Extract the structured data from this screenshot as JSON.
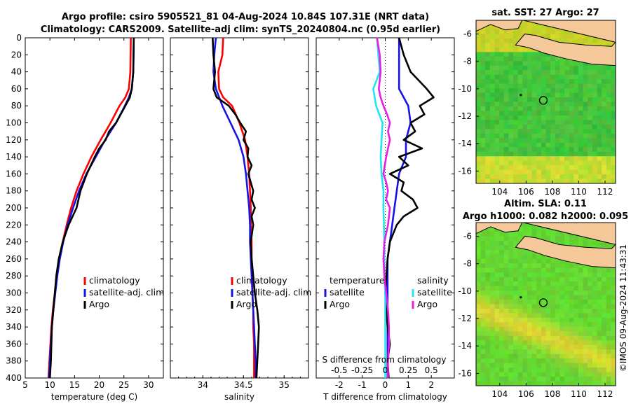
{
  "title_line1": "Argo profile: csiro 5905521_81 04-Aug-2024 10.84S 107.31E (NRT data)",
  "title_line2": "Climatology: CARS2009. Satellite-adj clim: synTS_20240804.nc (0.95d earlier)",
  "credit": "©IMOS 09-Aug-2024 11:43:31",
  "colors": {
    "climatology": "#ff0000",
    "satellite": "#1414e6",
    "argo": "#000000",
    "sat_salinity": "#22e5f0",
    "argo_salinity": "#e61ee6",
    "land": "#f5c89a",
    "sea": "#38c938"
  },
  "chart_data": [
    {
      "type": "line",
      "xlabel": "temperature (deg C)",
      "ylabel": "",
      "xlim": [
        5,
        33
      ],
      "ylim": [
        400,
        0
      ],
      "xticks": [
        "5",
        "10",
        "15",
        "20",
        "25",
        "30"
      ],
      "yticks": [
        "0",
        "20",
        "40",
        "60",
        "80",
        "100",
        "120",
        "140",
        "160",
        "180",
        "200",
        "220",
        "240",
        "260",
        "280",
        "300",
        "320",
        "340",
        "360",
        "380",
        "400"
      ],
      "legend": [
        "climatology",
        "satellite-adj. clim",
        "Argo"
      ],
      "series": [
        {
          "name": "climatology",
          "depth": [
            0,
            40,
            60,
            70,
            80,
            100,
            120,
            140,
            160,
            180,
            200,
            220,
            240,
            260,
            280,
            300,
            320,
            340,
            360,
            380,
            400
          ],
          "values": [
            26.4,
            26.3,
            26.0,
            25.3,
            24.1,
            22.3,
            20.3,
            18.4,
            16.8,
            15.4,
            14.3,
            13.4,
            12.6,
            11.9,
            11.4,
            11.0,
            10.6,
            10.3,
            10.1,
            9.9,
            9.7
          ]
        },
        {
          "name": "satellite-adj. clim",
          "depth": [
            0,
            40,
            60,
            70,
            80,
            100,
            120,
            140,
            160,
            180,
            200,
            220,
            240,
            260,
            280,
            300,
            320,
            340,
            360,
            380,
            400
          ],
          "values": [
            27.0,
            26.9,
            26.6,
            26.0,
            25.2,
            23.4,
            21.2,
            19.3,
            17.4,
            15.9,
            14.7,
            13.6,
            12.7,
            12.0,
            11.5,
            11.1,
            10.7,
            10.4,
            10.2,
            10.0,
            9.8
          ]
        },
        {
          "name": "Argo",
          "depth": [
            0,
            40,
            60,
            70,
            80,
            100,
            110,
            120,
            130,
            140,
            160,
            180,
            200,
            220,
            240,
            260,
            280,
            300,
            320,
            340,
            360,
            380,
            400
          ],
          "values": [
            27.0,
            26.9,
            26.6,
            26.2,
            25.3,
            23.4,
            22.0,
            21.3,
            20.0,
            19.1,
            17.5,
            16.2,
            15.4,
            13.8,
            12.6,
            11.8,
            11.3,
            11.0,
            10.7,
            10.4,
            10.3,
            10.2,
            10.0
          ]
        }
      ]
    },
    {
      "type": "line",
      "xlabel": "salinity",
      "ylabel": "",
      "xlim": [
        33.6,
        35.3
      ],
      "ylim": [
        400,
        0
      ],
      "xticks": [
        "34",
        "34.5",
        "35"
      ],
      "legend": [
        "climatology",
        "satellite-adj. clim",
        "Argo"
      ],
      "series": [
        {
          "name": "climatology",
          "depth": [
            0,
            20,
            40,
            60,
            70,
            80,
            100,
            120,
            140,
            160,
            180,
            200,
            220,
            240,
            260,
            280,
            300,
            320,
            340,
            360,
            380,
            400
          ],
          "values": [
            34.25,
            34.24,
            34.19,
            34.2,
            34.25,
            34.36,
            34.45,
            34.52,
            34.55,
            34.57,
            34.58,
            34.59,
            34.59,
            34.6,
            34.6,
            34.61,
            34.61,
            34.62,
            34.62,
            34.63,
            34.63,
            34.63
          ]
        },
        {
          "name": "satellite-adj. clim",
          "depth": [
            0,
            20,
            40,
            60,
            80,
            100,
            120,
            140,
            160,
            180,
            200,
            220,
            240,
            260,
            280,
            300,
            320,
            340,
            360,
            380,
            400
          ],
          "values": [
            34.16,
            34.14,
            34.13,
            34.16,
            34.24,
            34.34,
            34.44,
            34.5,
            34.53,
            34.55,
            34.57,
            34.58,
            34.58,
            34.59,
            34.6,
            34.61,
            34.62,
            34.63,
            34.64,
            34.65,
            34.65
          ]
        },
        {
          "name": "Argo",
          "depth": [
            0,
            20,
            40,
            60,
            70,
            80,
            90,
            100,
            110,
            120,
            130,
            140,
            150,
            160,
            180,
            190,
            200,
            210,
            220,
            240,
            260,
            280,
            300,
            320,
            340,
            360,
            380,
            400
          ],
          "values": [
            34.12,
            34.13,
            34.15,
            34.13,
            34.17,
            34.32,
            34.4,
            34.46,
            34.53,
            34.5,
            34.56,
            34.55,
            34.6,
            34.56,
            34.62,
            34.6,
            34.64,
            34.6,
            34.62,
            34.59,
            34.6,
            34.62,
            34.64,
            34.67,
            34.69,
            34.68,
            34.67,
            34.66
          ]
        }
      ]
    },
    {
      "type": "line",
      "xlabel": "T difference from climatology",
      "xlabel_top": "S difference from climatology",
      "xlim": [
        -3,
        3
      ],
      "ylim": [
        400,
        0
      ],
      "xticks": [
        "-2",
        "-1",
        "0",
        "1",
        "2"
      ],
      "xticks_top": [
        "-0.5",
        "-0.25",
        "0",
        "0.25",
        "0.5"
      ],
      "legend_left": {
        "heading": "temperature",
        "items": [
          "satellite",
          "Argo"
        ]
      },
      "legend_right": {
        "heading": "salinity",
        "items": [
          "satellite",
          "Argo"
        ]
      },
      "series": [
        {
          "name": "temperature satellite",
          "depth": [
            0,
            40,
            60,
            80,
            100,
            120,
            140,
            160,
            180,
            200,
            220,
            240,
            260,
            280,
            300,
            320,
            340,
            360,
            380,
            400
          ],
          "values": [
            0.6,
            0.6,
            0.6,
            1.0,
            1.1,
            0.9,
            0.9,
            0.6,
            0.5,
            0.4,
            0.3,
            0.2,
            0.1,
            0.1,
            0.1,
            0.1,
            0.1,
            0.1,
            0.1,
            0.1
          ]
        },
        {
          "name": "temperature Argo",
          "depth": [
            0,
            20,
            40,
            60,
            70,
            80,
            90,
            100,
            110,
            120,
            130,
            140,
            150,
            160,
            170,
            180,
            190,
            200,
            210,
            220,
            240,
            260,
            280,
            300,
            320,
            340,
            360,
            380,
            400
          ],
          "values": [
            0.6,
            0.8,
            1.1,
            1.8,
            2.1,
            1.5,
            1.7,
            1.1,
            1.3,
            0.8,
            1.6,
            0.6,
            1.0,
            0.2,
            0.8,
            0.7,
            1.2,
            1.4,
            0.8,
            0.5,
            0.2,
            0.1,
            0.05,
            0.0,
            0.05,
            0.1,
            0.2,
            0.1,
            0.15
          ]
        },
        {
          "name": "salinity satellite",
          "depth": [
            0,
            40,
            60,
            80,
            100,
            120,
            140,
            160,
            180,
            200,
            240,
            280,
            300,
            320,
            340,
            360,
            380,
            400
          ],
          "values": [
            -0.09,
            -0.06,
            -0.13,
            -0.1,
            -0.03,
            -0.04,
            -0.05,
            -0.04,
            -0.02,
            -0.02,
            -0.01,
            -0.01,
            0,
            0,
            0,
            0,
            0,
            0
          ]
        },
        {
          "name": "salinity Argo",
          "depth": [
            0,
            20,
            40,
            60,
            70,
            80,
            90,
            100,
            110,
            120,
            140,
            160,
            170,
            180,
            190,
            200,
            220,
            240,
            260,
            280,
            300,
            320,
            340,
            360,
            380,
            400
          ],
          "values": [
            -0.09,
            -0.06,
            -0.05,
            -0.07,
            -0.05,
            -0.02,
            0.02,
            0.05,
            0.03,
            0.05,
            0.01,
            -0.02,
            0.01,
            0.03,
            0.01,
            0.05,
            0.03,
            -0.01,
            -0.02,
            -0.01,
            0.01,
            0.03,
            0.04,
            0.04,
            0.03,
            0.03
          ]
        }
      ]
    },
    {
      "type": "heatmap",
      "title": "sat. SST: 27 Argo: 27",
      "xticks": [
        "104",
        "106",
        "108",
        "110",
        "112"
      ],
      "yticks": [
        "-6",
        "-8",
        "-10",
        "-12",
        "-14",
        "-16"
      ],
      "marker": {
        "lon": 107.31,
        "lat": -10.84
      }
    },
    {
      "type": "heatmap",
      "title_line1": "Altim. SLA: 0.11",
      "title_line2": "Argo h1000: 0.082 h2000: 0.095",
      "xticks": [
        "104",
        "106",
        "108",
        "110",
        "112"
      ],
      "yticks": [
        "-6",
        "-8",
        "-10",
        "-12",
        "-14",
        "-16"
      ],
      "marker": {
        "lon": 107.31,
        "lat": -10.84
      }
    }
  ]
}
